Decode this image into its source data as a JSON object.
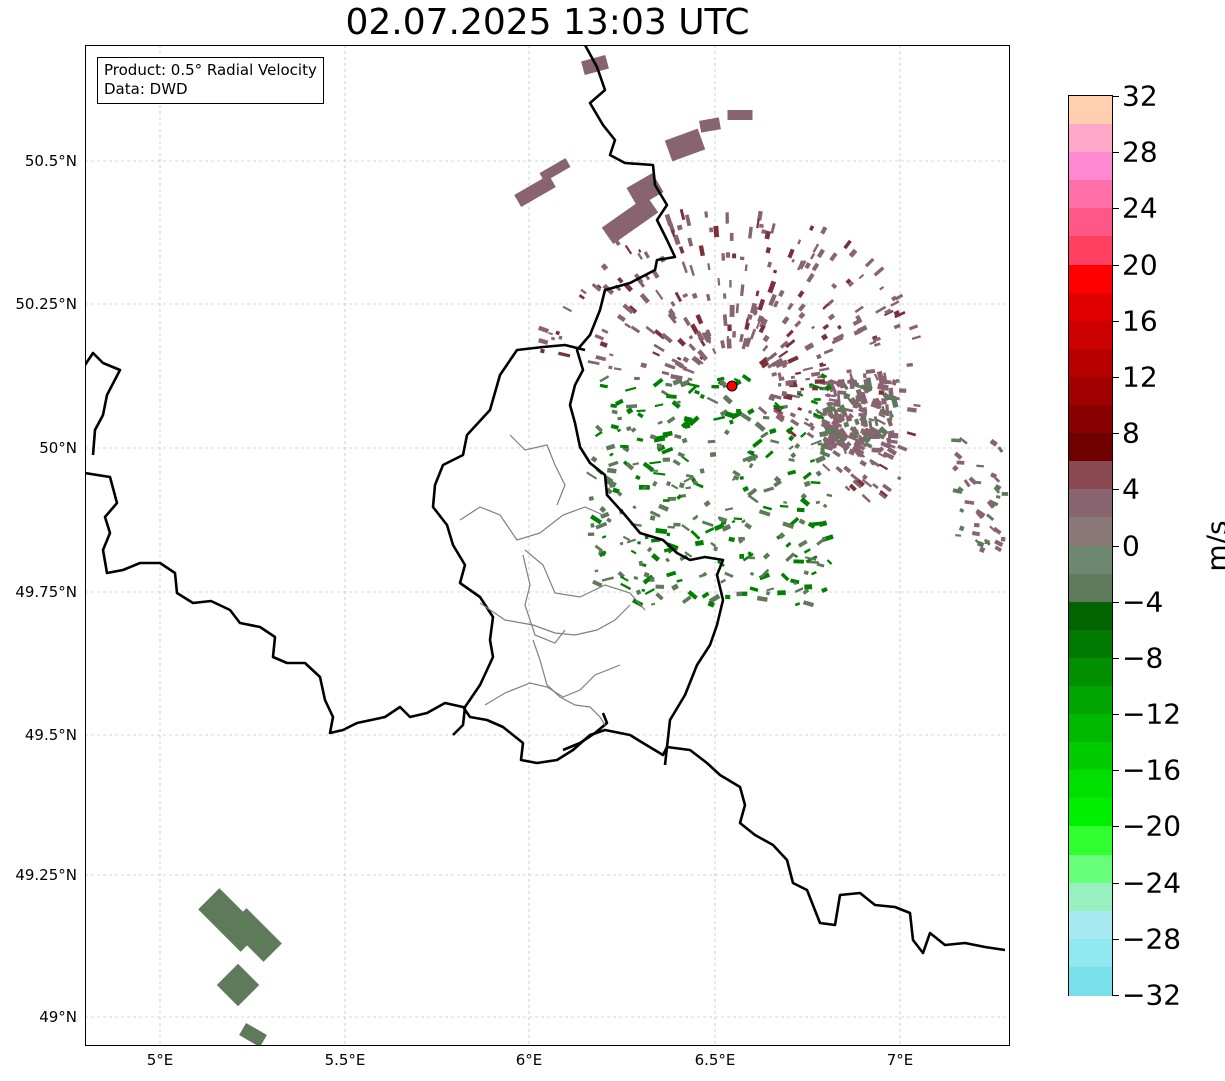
{
  "title": "02.07.2025 13:03 UTC",
  "info_box": {
    "product": "Product: 0.5° Radial Velocity",
    "source": "Data: DWD"
  },
  "axes": {
    "lat_labels": [
      "49°N",
      "49.25°N",
      "49.5°N",
      "49.75°N",
      "50°N",
      "50.25°N",
      "50.5°N"
    ],
    "lon_labels": [
      "5°E",
      "5.5°E",
      "6°E",
      "6.5°E",
      "7°E"
    ],
    "grid": true
  },
  "colorbar": {
    "unit": "m/s",
    "tick_labels": [
      "32",
      "28",
      "24",
      "20",
      "16",
      "12",
      "8",
      "4",
      "0",
      "−4",
      "−8",
      "−12",
      "−16",
      "−20",
      "−24",
      "−28",
      "−32"
    ],
    "range": [
      -32,
      32
    ],
    "colors_top_to_bottom": [
      "#ffd0b0",
      "#ffa8c8",
      "#ff88d0",
      "#ff70a8",
      "#ff5888",
      "#ff4060",
      "#ff0000",
      "#e00000",
      "#cc0000",
      "#b80000",
      "#a00000",
      "#880000",
      "#700000",
      "#8a4850",
      "#886470",
      "#8a7878",
      "#6e8870",
      "#5e7a5a",
      "#006400",
      "#007a00",
      "#009000",
      "#00a400",
      "#00b800",
      "#00cc00",
      "#00e000",
      "#00f000",
      "#30ff30",
      "#68ff78",
      "#98f0c0",
      "#a8e8f0",
      "#90e8f0",
      "#78e0e8"
    ],
    "colors": {
      "approaching": "#009000",
      "receding": "#880000"
    }
  },
  "map": {
    "radar_site": "red-dot",
    "borders": [
      "country-borders",
      "district-borders"
    ],
    "echo_colors": {
      "weak_negative": "#5e7a5a",
      "weak_positive": "#886470",
      "strong_negative": "#008000",
      "strong_positive": "#7a3038"
    }
  }
}
